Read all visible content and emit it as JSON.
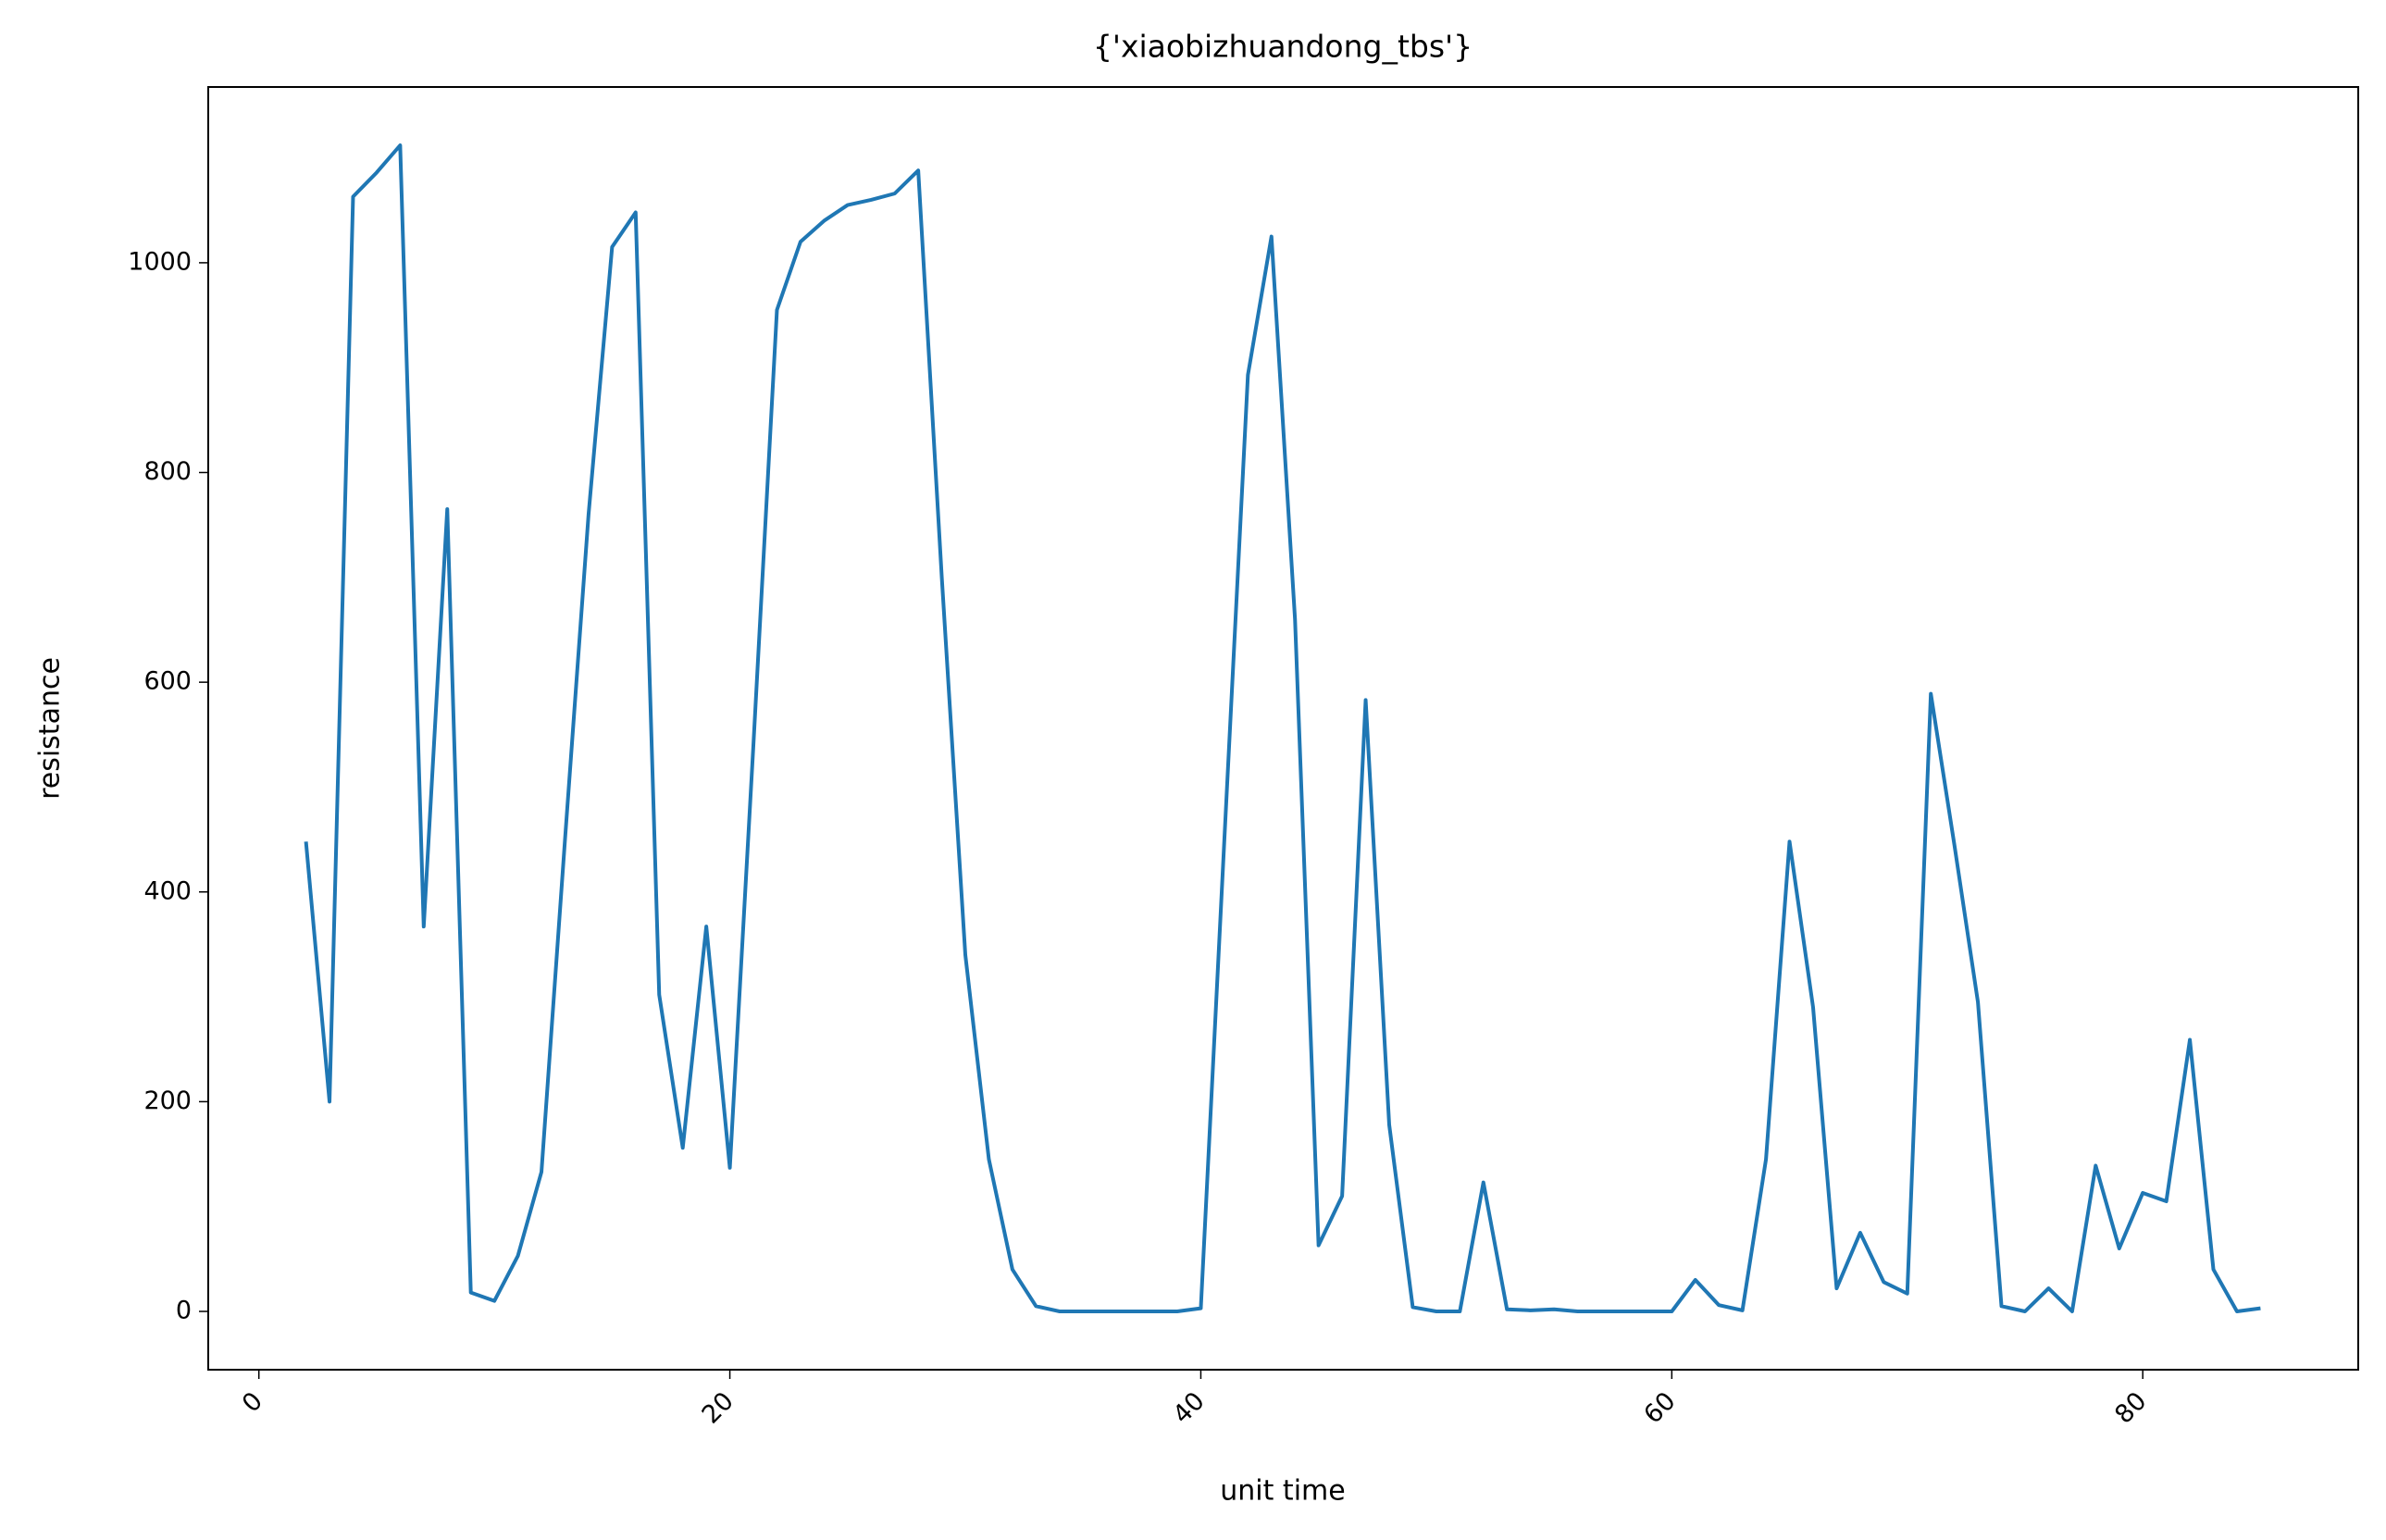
{
  "chart_data": {
    "type": "line",
    "title": "{'xiaobizhuandong_tbs'}",
    "xlabel": "unit time",
    "ylabel": "resistance",
    "x": [
      2,
      3,
      4,
      5,
      6,
      7,
      8,
      9,
      10,
      11,
      12,
      13,
      14,
      15,
      16,
      17,
      18,
      19,
      20,
      21,
      22,
      23,
      24,
      25,
      26,
      27,
      28,
      29,
      30,
      31,
      32,
      33,
      34,
      35,
      36,
      37,
      38,
      39,
      40,
      41,
      42,
      43,
      44,
      45,
      46,
      47,
      48,
      49,
      50,
      51,
      52,
      53,
      54,
      55,
      56,
      57,
      58,
      59,
      60,
      61,
      62,
      63,
      64,
      65,
      66,
      67,
      68,
      69,
      70,
      71,
      72,
      73,
      74,
      75,
      76,
      77,
      78,
      79,
      80,
      81,
      82,
      83,
      84,
      85
    ],
    "series": [
      {
        "name": "resistance",
        "color": "#1f77b4",
        "values": [
          448,
          200,
          1063,
          1086,
          1112,
          367,
          765,
          18,
          10,
          53,
          133,
          450,
          760,
          1015,
          1048,
          302,
          156,
          367,
          137,
          540,
          955,
          1020,
          1040,
          1055,
          1060,
          1066,
          1088,
          700,
          340,
          145,
          40,
          5,
          0,
          0,
          0,
          0,
          0,
          0,
          3,
          450,
          893,
          1025,
          660,
          63,
          110,
          583,
          178,
          4,
          0,
          0,
          123,
          2,
          1,
          2,
          0,
          0,
          0,
          0,
          0,
          30,
          6,
          1,
          145,
          448,
          290,
          22,
          75,
          28,
          17,
          589,
          445,
          295,
          5,
          0,
          22,
          0,
          139,
          60,
          113,
          105,
          259,
          40,
          0,
          3
        ]
      }
    ],
    "xlim": [
      -2.15,
      89.15
    ],
    "ylim": [
      -55.6,
      1167.6
    ],
    "xticks": [
      0,
      20,
      40,
      60,
      80
    ],
    "yticks": [
      0,
      200,
      400,
      600,
      800,
      1000
    ],
    "grid": false
  }
}
